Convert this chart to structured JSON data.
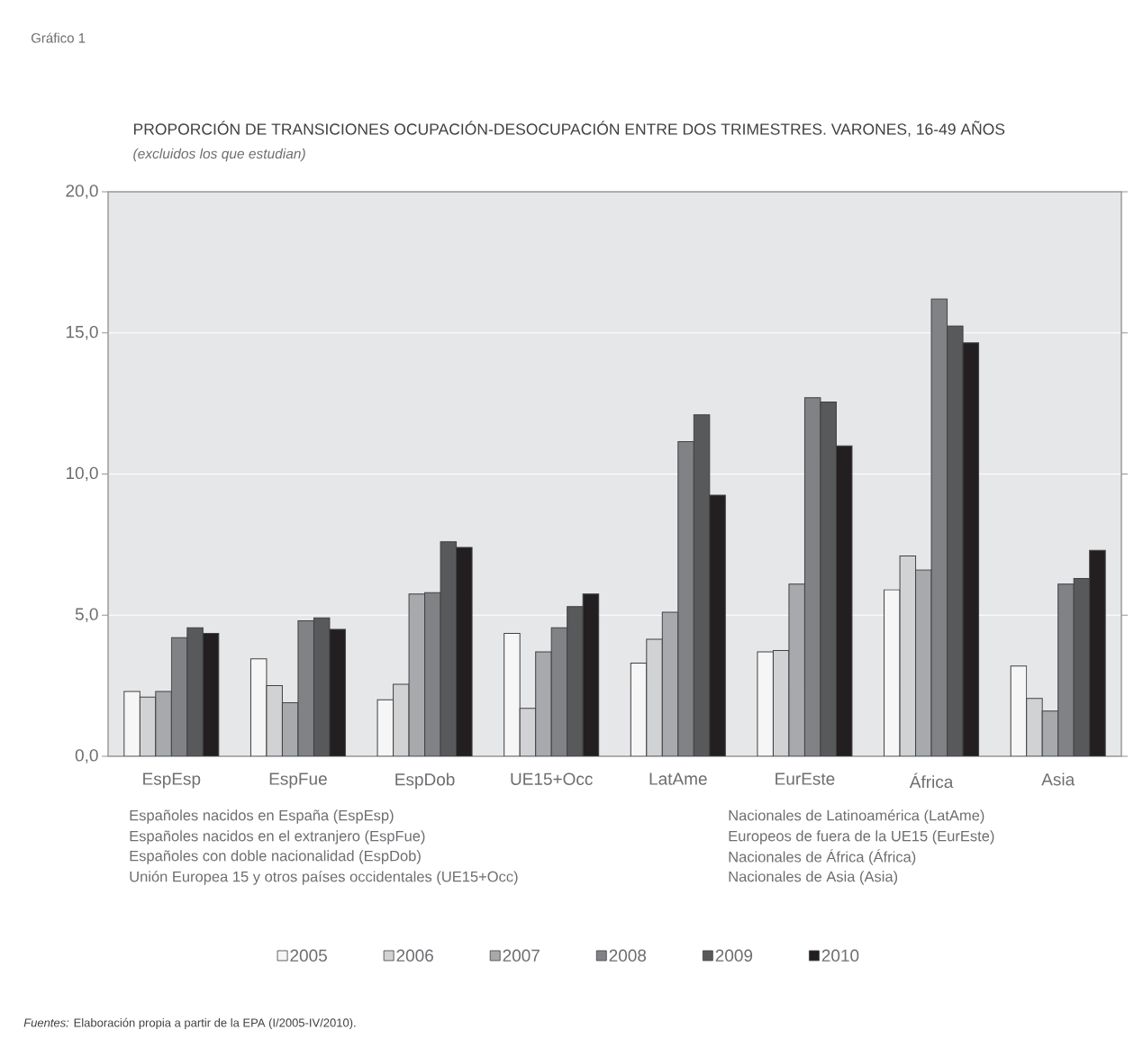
{
  "chart_data": {
    "type": "bar",
    "title": "PROPORCIÓN DE TRANSICIONES OCUPACIÓN-DESOCUPACIÓN ENTRE DOS TRIMESTRES. VARONES, 16-49 AÑOS",
    "subtitle": "(excluidos los que estudian)",
    "categories": [
      "EspEsp",
      "EspFue",
      "EspDob",
      "UE15+Occ",
      "LatAme",
      "EurEste",
      "África",
      "Asia"
    ],
    "series": [
      {
        "name": "2005",
        "color": "#f6f6f6",
        "values": [
          2.3,
          3.45,
          2.0,
          4.35,
          3.3,
          3.7,
          5.9,
          3.2
        ]
      },
      {
        "name": "2006",
        "color": "#d1d2d4",
        "values": [
          2.1,
          2.5,
          2.55,
          1.7,
          4.15,
          3.75,
          7.1,
          2.05
        ]
      },
      {
        "name": "2007",
        "color": "#a7a9ac",
        "values": [
          2.3,
          1.9,
          5.75,
          3.7,
          5.1,
          6.1,
          6.6,
          1.6
        ]
      },
      {
        "name": "2008",
        "color": "#808285",
        "values": [
          4.2,
          4.8,
          5.8,
          4.55,
          11.15,
          12.7,
          16.2,
          6.1
        ]
      },
      {
        "name": "2009",
        "color": "#58595b",
        "values": [
          4.55,
          4.9,
          7.6,
          5.3,
          12.1,
          12.55,
          15.25,
          6.3
        ]
      },
      {
        "name": "2010",
        "color": "#231f20",
        "values": [
          4.35,
          4.5,
          7.4,
          5.75,
          9.25,
          11.0,
          14.65,
          7.3
        ]
      }
    ],
    "ylim": [
      0,
      20
    ],
    "yticks": [
      {
        "value": 0,
        "label": "0,0"
      },
      {
        "value": 5,
        "label": "5,0"
      },
      {
        "value": 10,
        "label": "10,0"
      },
      {
        "value": 15,
        "label": "15,0"
      },
      {
        "value": 20,
        "label": "20,0"
      }
    ],
    "grid": "y",
    "legend": "bottom",
    "annotations": [
      "Gráfico 1",
      "Españoles nacidos en España (EspEsp)",
      "Españoles nacidos en el extranjero (EspFue)",
      "Españoles con doble nacionalidad (EspDob)",
      "Unión Europea 15 y otros países occidentales (UE15+Occ)",
      "Nacionales de Latinoamérica (LatAme)",
      "Europeos de fuera de la UE15 (EurEste)",
      "Nacionales de África (África)",
      "Nacionales de Asia (Asia)",
      "*Fuentes:* Elaboración propia a partir de la EPA (I/2005-IV/2010)."
    ]
  }
}
